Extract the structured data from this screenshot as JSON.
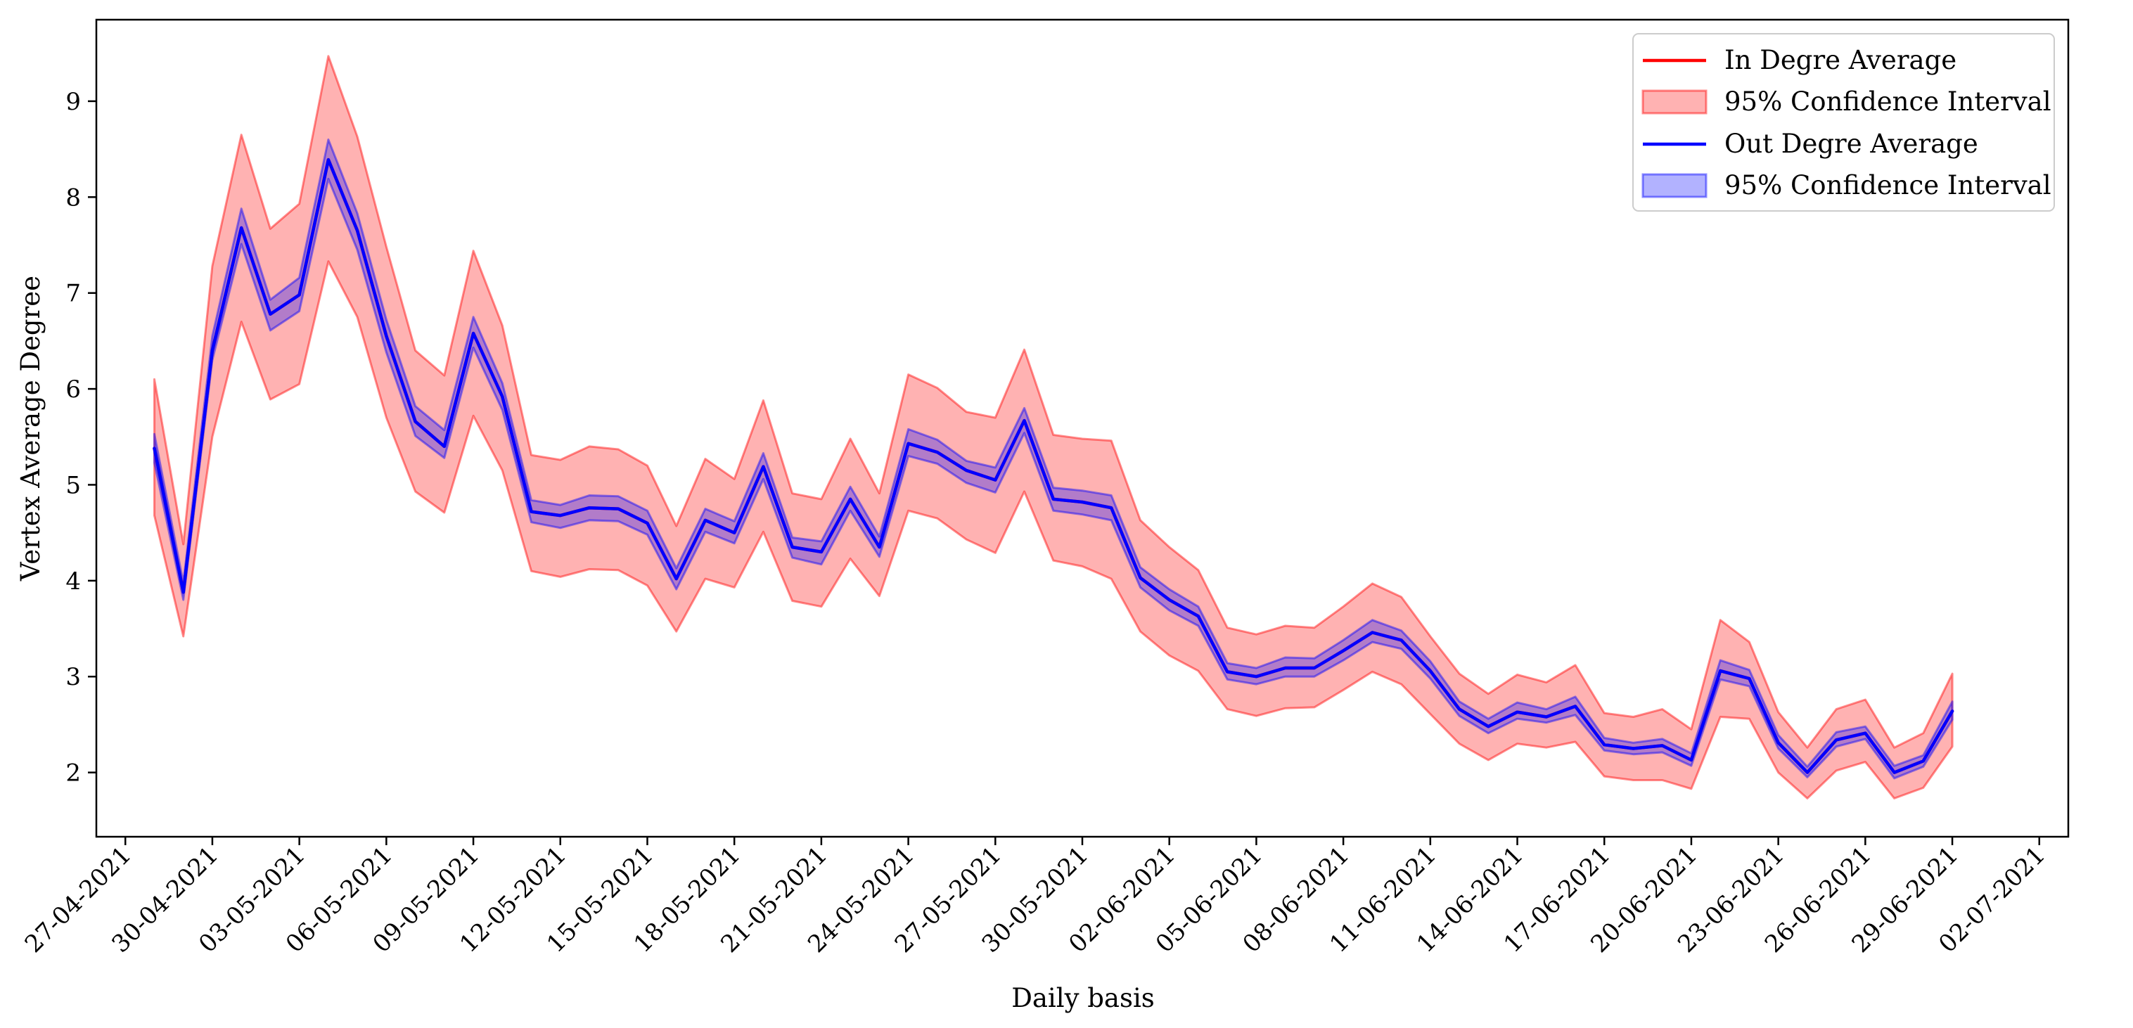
{
  "chart_data": {
    "type": "line",
    "title": "",
    "xlabel": "Daily basis",
    "ylabel": "Vertex Average Degree",
    "x_tick_labels": [
      "27-04-2021",
      "30-04-2021",
      "03-05-2021",
      "06-05-2021",
      "09-05-2021",
      "12-05-2021",
      "15-05-2021",
      "18-05-2021",
      "21-05-2021",
      "24-05-2021",
      "27-05-2021",
      "30-05-2021",
      "02-06-2021",
      "05-06-2021",
      "08-06-2021",
      "11-06-2021",
      "14-06-2021",
      "17-06-2021",
      "20-06-2021",
      "23-06-2021",
      "26-06-2021",
      "29-06-2021",
      "02-07-2021"
    ],
    "y_tick_labels": [
      "2",
      "3",
      "4",
      "5",
      "6",
      "7",
      "8",
      "9"
    ],
    "x_range": [
      "2021-04-26",
      "2021-07-03"
    ],
    "ylim": [
      1.33,
      9.85
    ],
    "legend_placement": "top-right",
    "grid": false,
    "x": [
      "2021-04-28",
      "2021-04-29",
      "2021-04-30",
      "2021-05-01",
      "2021-05-02",
      "2021-05-03",
      "2021-05-04",
      "2021-05-05",
      "2021-05-06",
      "2021-05-07",
      "2021-05-08",
      "2021-05-09",
      "2021-05-10",
      "2021-05-11",
      "2021-05-12",
      "2021-05-13",
      "2021-05-14",
      "2021-05-15",
      "2021-05-16",
      "2021-05-17",
      "2021-05-18",
      "2021-05-19",
      "2021-05-20",
      "2021-05-21",
      "2021-05-22",
      "2021-05-23",
      "2021-05-24",
      "2021-05-25",
      "2021-05-26",
      "2021-05-27",
      "2021-05-28",
      "2021-05-29",
      "2021-05-30",
      "2021-05-31",
      "2021-06-01",
      "2021-06-02",
      "2021-06-03",
      "2021-06-04",
      "2021-06-05",
      "2021-06-06",
      "2021-06-07",
      "2021-06-08",
      "2021-06-09",
      "2021-06-10",
      "2021-06-11",
      "2021-06-12",
      "2021-06-13",
      "2021-06-14",
      "2021-06-15",
      "2021-06-16",
      "2021-06-17",
      "2021-06-18",
      "2021-06-19",
      "2021-06-20",
      "2021-06-21",
      "2021-06-22",
      "2021-06-23",
      "2021-06-24",
      "2021-06-25",
      "2021-06-26",
      "2021-06-27",
      "2021-06-28",
      "2021-06-29"
    ],
    "series": [
      {
        "name": "In Degre Average",
        "color": "#ff0000",
        "values": [
          5.38,
          3.88,
          6.4,
          7.68,
          6.78,
          6.98,
          8.39,
          7.65,
          6.55,
          5.66,
          5.4,
          6.58,
          5.92,
          4.72,
          4.68,
          4.76,
          4.75,
          4.6,
          4.02,
          4.63,
          4.5,
          5.19,
          4.35,
          4.3,
          4.85,
          4.35,
          5.43,
          5.34,
          5.15,
          5.05,
          5.67,
          4.85,
          4.82,
          4.76,
          4.03,
          3.8,
          3.63,
          3.05,
          3.0,
          3.09,
          3.09,
          3.27,
          3.46,
          3.38,
          3.06,
          2.66,
          2.48,
          2.63,
          2.58,
          2.69,
          2.29,
          2.25,
          2.28,
          2.13,
          3.06,
          2.98,
          2.31,
          2.0,
          2.34,
          2.41,
          2.0,
          2.12,
          2.64
        ],
        "ci_lower": [
          4.68,
          3.42,
          5.5,
          6.7,
          5.89,
          6.05,
          7.33,
          6.75,
          5.7,
          4.93,
          4.71,
          5.72,
          5.15,
          4.1,
          4.04,
          4.12,
          4.11,
          3.95,
          3.47,
          4.02,
          3.93,
          4.51,
          3.79,
          3.73,
          4.23,
          3.84,
          4.73,
          4.65,
          4.43,
          4.29,
          4.93,
          4.21,
          4.15,
          4.02,
          3.47,
          3.22,
          3.06,
          2.66,
          2.59,
          2.67,
          2.68,
          2.86,
          3.05,
          2.92,
          2.61,
          2.3,
          2.13,
          2.3,
          2.26,
          2.32,
          1.96,
          1.92,
          1.92,
          1.83,
          2.58,
          2.56,
          2.0,
          1.73,
          2.02,
          2.11,
          1.73,
          1.84,
          2.27
        ],
        "ci_upper": [
          6.1,
          4.38,
          7.28,
          8.65,
          7.67,
          7.93,
          9.47,
          8.63,
          7.48,
          6.4,
          6.14,
          7.44,
          6.66,
          5.31,
          5.26,
          5.4,
          5.37,
          5.2,
          4.57,
          5.27,
          5.06,
          5.88,
          4.91,
          4.85,
          5.48,
          4.91,
          6.15,
          6.01,
          5.76,
          5.7,
          6.41,
          5.52,
          5.48,
          5.46,
          4.63,
          4.35,
          4.11,
          3.51,
          3.44,
          3.53,
          3.51,
          3.73,
          3.97,
          3.83,
          3.42,
          3.03,
          2.82,
          3.02,
          2.94,
          3.12,
          2.62,
          2.58,
          2.66,
          2.45,
          3.59,
          3.36,
          2.63,
          2.26,
          2.66,
          2.76,
          2.26,
          2.41,
          3.03
        ]
      },
      {
        "name": "Out Degre Average",
        "color": "#0000ff",
        "values": [
          5.38,
          3.88,
          6.4,
          7.68,
          6.78,
          6.98,
          8.39,
          7.65,
          6.55,
          5.66,
          5.4,
          6.58,
          5.92,
          4.72,
          4.68,
          4.76,
          4.75,
          4.6,
          4.02,
          4.63,
          4.5,
          5.19,
          4.35,
          4.3,
          4.85,
          4.35,
          5.43,
          5.34,
          5.15,
          5.05,
          5.67,
          4.85,
          4.82,
          4.76,
          4.03,
          3.8,
          3.63,
          3.05,
          3.0,
          3.09,
          3.09,
          3.27,
          3.46,
          3.38,
          3.06,
          2.66,
          2.48,
          2.63,
          2.58,
          2.69,
          2.29,
          2.25,
          2.28,
          2.13,
          3.06,
          2.98,
          2.31,
          2.0,
          2.34,
          2.41,
          2.0,
          2.12,
          2.64
        ],
        "ci_lower": [
          5.23,
          3.8,
          6.3,
          7.51,
          6.61,
          6.81,
          8.19,
          7.45,
          6.38,
          5.51,
          5.28,
          6.43,
          5.78,
          4.61,
          4.55,
          4.63,
          4.62,
          4.48,
          3.91,
          4.51,
          4.39,
          5.06,
          4.24,
          4.17,
          4.73,
          4.25,
          5.3,
          5.22,
          5.02,
          4.92,
          5.54,
          4.73,
          4.69,
          4.63,
          3.93,
          3.69,
          3.53,
          2.97,
          2.92,
          3.0,
          3.0,
          3.17,
          3.36,
          3.29,
          2.98,
          2.59,
          2.41,
          2.56,
          2.52,
          2.6,
          2.23,
          2.19,
          2.21,
          2.07,
          2.97,
          2.9,
          2.25,
          1.95,
          2.27,
          2.35,
          1.94,
          2.06,
          2.55
        ],
        "ci_upper": [
          5.53,
          3.98,
          6.55,
          7.88,
          6.93,
          7.16,
          8.6,
          7.83,
          6.72,
          5.82,
          5.57,
          6.75,
          6.06,
          4.84,
          4.79,
          4.89,
          4.88,
          4.73,
          4.13,
          4.75,
          4.62,
          5.33,
          4.45,
          4.41,
          4.98,
          4.46,
          5.58,
          5.47,
          5.25,
          5.18,
          5.8,
          4.97,
          4.94,
          4.89,
          4.14,
          3.91,
          3.73,
          3.14,
          3.09,
          3.2,
          3.19,
          3.38,
          3.59,
          3.48,
          3.16,
          2.74,
          2.56,
          2.73,
          2.66,
          2.79,
          2.36,
          2.31,
          2.35,
          2.2,
          3.17,
          3.07,
          2.39,
          2.06,
          2.42,
          2.48,
          2.07,
          2.18,
          2.74
        ]
      }
    ],
    "legend": [
      {
        "label": "In Degre Average",
        "kind": "line",
        "color": "#ff0000"
      },
      {
        "label": "95% Confidence Interval",
        "kind": "patch",
        "color": "#ff0000"
      },
      {
        "label": "Out Degre Average",
        "kind": "line",
        "color": "#0000ff"
      },
      {
        "label": "95% Confidence Interval",
        "kind": "patch",
        "color": "#0000ff"
      }
    ]
  }
}
